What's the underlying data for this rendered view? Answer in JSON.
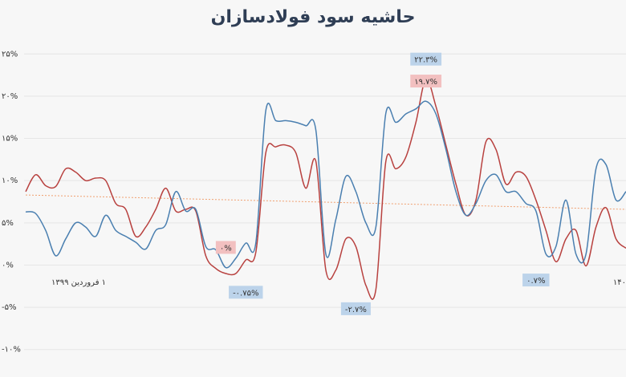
{
  "chart_data": {
    "type": "line",
    "title": "حاشیه سود فولادسازان",
    "x_tick_labels": [
      {
        "x": 0,
        "label": "۱ فروردین ۱۳۹۹"
      },
      {
        "x": 60,
        "label": "۱۴۰"
      }
    ],
    "ylim": [
      -10.5,
      25.5
    ],
    "yticks": [
      {
        "value": 25,
        "label": "۲۵%"
      },
      {
        "value": 20,
        "label": "۲۰%"
      },
      {
        "value": 15,
        "label": "۱۵%"
      },
      {
        "value": 10,
        "label": "۱۰%"
      },
      {
        "value": 5,
        "label": "۵%"
      },
      {
        "value": 0,
        "label": "۰%"
      },
      {
        "value": -5,
        "label": "-۵%"
      },
      {
        "value": -10,
        "label": "-۱۰%"
      }
    ],
    "grid": true,
    "series": [
      {
        "color": "#4a7fb0",
        "values": [
          6.3,
          6.1,
          4.1,
          1.1,
          3.1,
          5.0,
          4.5,
          3.4,
          5.9,
          4.1,
          3.4,
          2.7,
          1.9,
          4.1,
          4.8,
          8.7,
          6.4,
          6.6,
          2.2,
          1.8,
          -0.3,
          0.8,
          2.6,
          2.6,
          18.3,
          17.1,
          17.1,
          16.9,
          16.5,
          16.0,
          1.3,
          5.4,
          10.5,
          8.7,
          5.0,
          4.5,
          18.0,
          16.9,
          17.9,
          18.5,
          19.4,
          17.9,
          13.7,
          8.7,
          5.9,
          7.3,
          10.0,
          10.7,
          8.7,
          8.7,
          7.3,
          6.4,
          1.3,
          2.2,
          7.7,
          1.3,
          1.3,
          11.4,
          11.9,
          7.7,
          8.7
        ]
      },
      {
        "color": "#b8413f",
        "values": [
          8.7,
          10.7,
          9.4,
          9.3,
          11.4,
          11.0,
          10.0,
          10.3,
          10.0,
          7.3,
          6.6,
          3.4,
          4.5,
          6.6,
          9.1,
          6.4,
          6.6,
          6.4,
          1.1,
          -0.4,
          -1.0,
          -1.0,
          0.6,
          1.5,
          13.3,
          14.0,
          14.2,
          13.3,
          9.1,
          12.3,
          -0.6,
          -0.6,
          3.1,
          2.2,
          -2.4,
          -2.9,
          12.3,
          11.4,
          12.8,
          16.9,
          22.0,
          18.8,
          14.2,
          9.6,
          5.9,
          7.7,
          14.6,
          13.7,
          9.6,
          11.0,
          10.5,
          7.7,
          4.1,
          0.4,
          3.1,
          4.1,
          -0.1,
          4.5,
          6.8,
          3.1,
          2.0
        ]
      }
    ],
    "trend": {
      "color": "#f0a070",
      "x": [
        0,
        60
      ],
      "values": [
        8.3,
        6.6
      ]
    },
    "annotations": [
      {
        "x": 40,
        "value": 22.3,
        "label": "۲۲.۳%",
        "color": "#bcd3ea"
      },
      {
        "x": 40,
        "value": 19.7,
        "label": "۱۹.۷%",
        "color": "#f2c0c0"
      },
      {
        "x": 20,
        "value": 0,
        "label": "۰%",
        "color": "#f2c0c0"
      },
      {
        "x": 22,
        "value": -0.75,
        "label": "-۰.۷۵%",
        "color": "#bcd3ea"
      },
      {
        "x": 33,
        "value": -2.7,
        "label": "-۲.۷%",
        "color": "#bcd3ea"
      },
      {
        "x": 51,
        "value": 0.7,
        "label": "۰.۷%",
        "color": "#bcd3ea"
      }
    ]
  }
}
